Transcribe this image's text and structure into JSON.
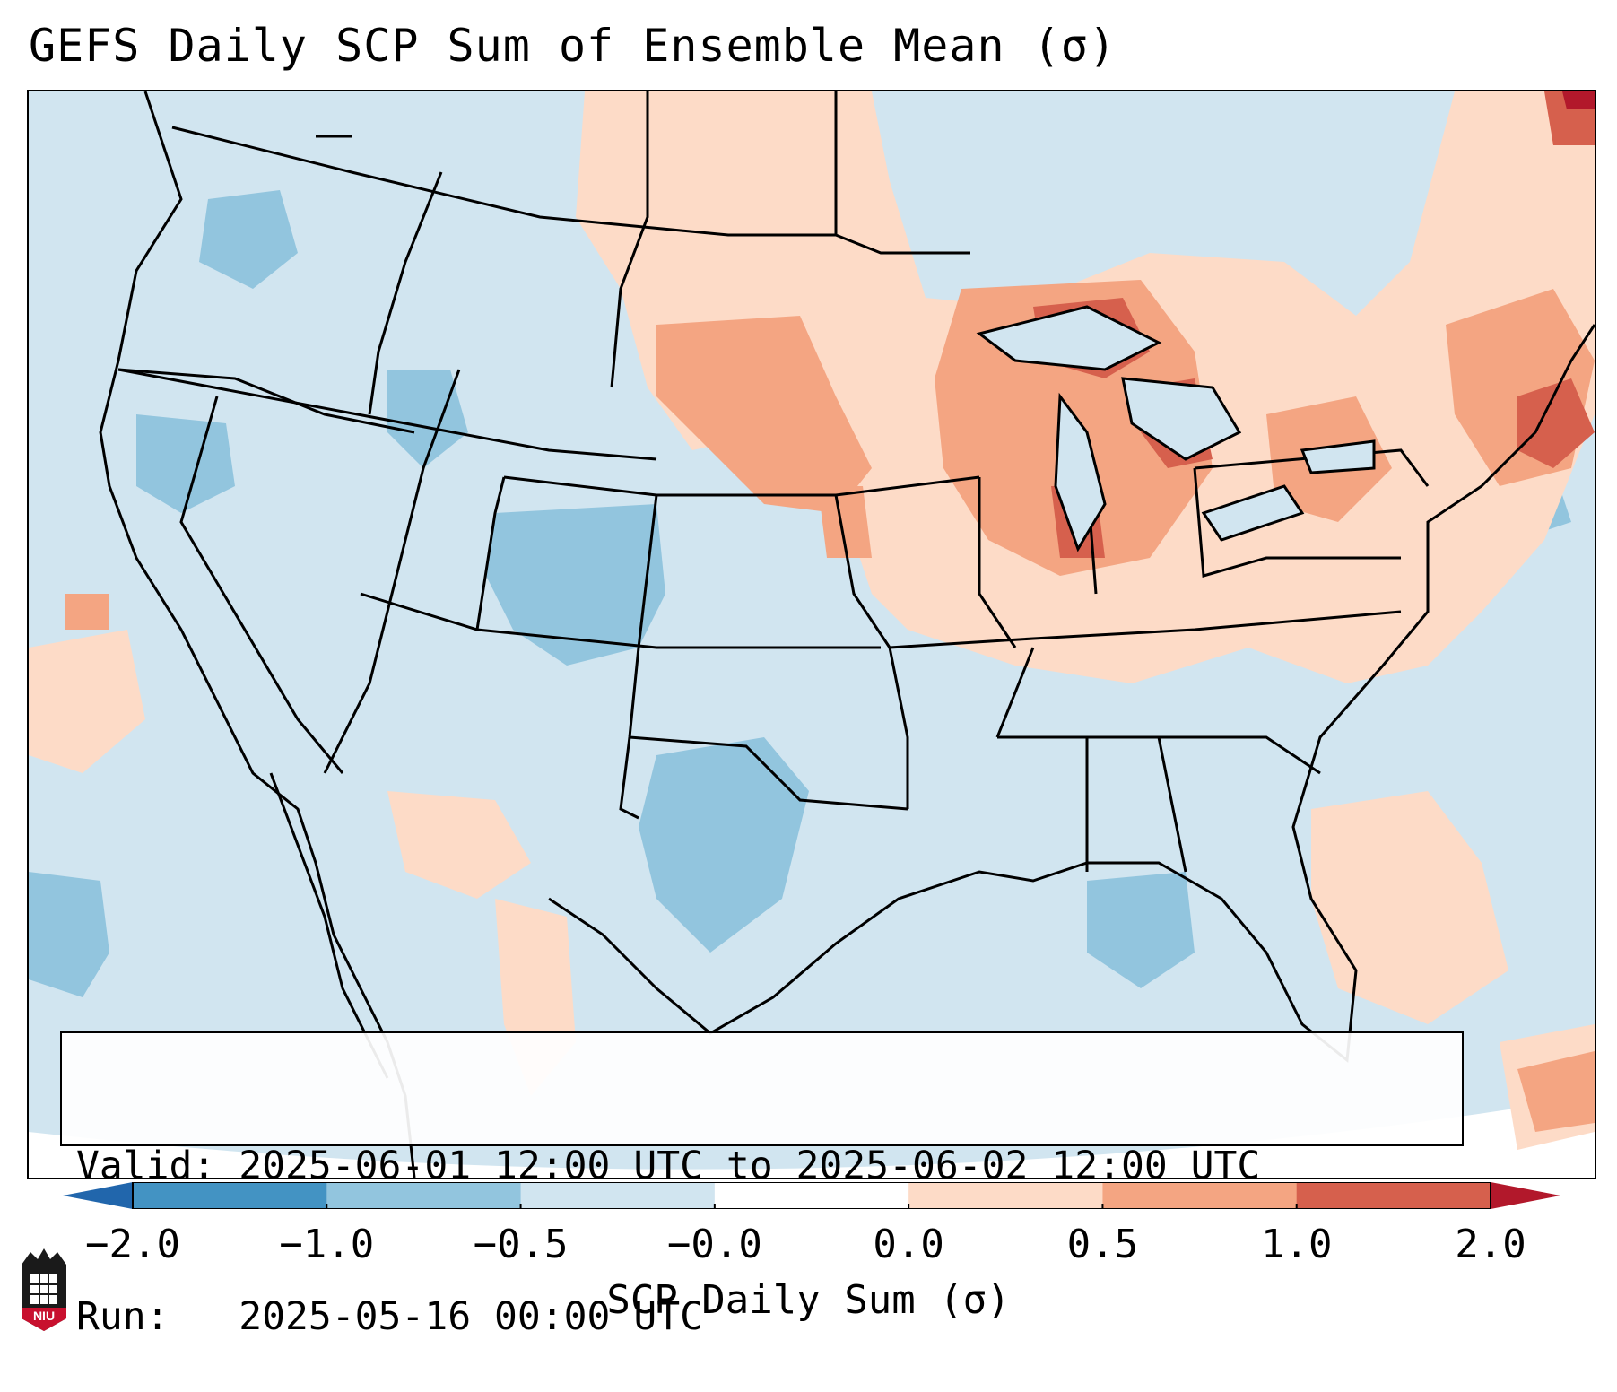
{
  "title": "GEFS Daily SCP Sum of Ensemble Mean (σ)",
  "info": {
    "valid_line": "Valid: 2025-06-01 12:00 UTC to 2025-06-02 12:00 UTC",
    "run_line": "Run:   2025-05-16 00:00 UTC"
  },
  "colorbar": {
    "label": "SCP Daily Sum (σ)",
    "ticks": [
      "−2.0",
      "−1.0",
      "−0.5",
      "−0.0",
      "0.0",
      "0.5",
      "1.0",
      "2.0"
    ],
    "colors": {
      "under": "#2166ac",
      "bins": [
        "#4393c3",
        "#92c5de",
        "#d1e5f0",
        "#ffffff",
        "#fddbc7",
        "#f4a582",
        "#d6604d"
      ],
      "over": "#b2182b"
    }
  },
  "logo": {
    "text": "NIU"
  },
  "map": {
    "background_color": "#d1e5f0",
    "regions": [
      {
        "name": "upper-midwest-positive",
        "level": "0.0 to 0.5"
      },
      {
        "name": "great-lakes-max",
        "level": "1.0 to 2.0"
      },
      {
        "name": "northeast-positive",
        "level": "0.5 to 1.0"
      },
      {
        "name": "colorado-negative",
        "level": "-1.0 to -0.5"
      },
      {
        "name": "texas-negative",
        "level": "-1.0 to -0.5"
      }
    ]
  }
}
